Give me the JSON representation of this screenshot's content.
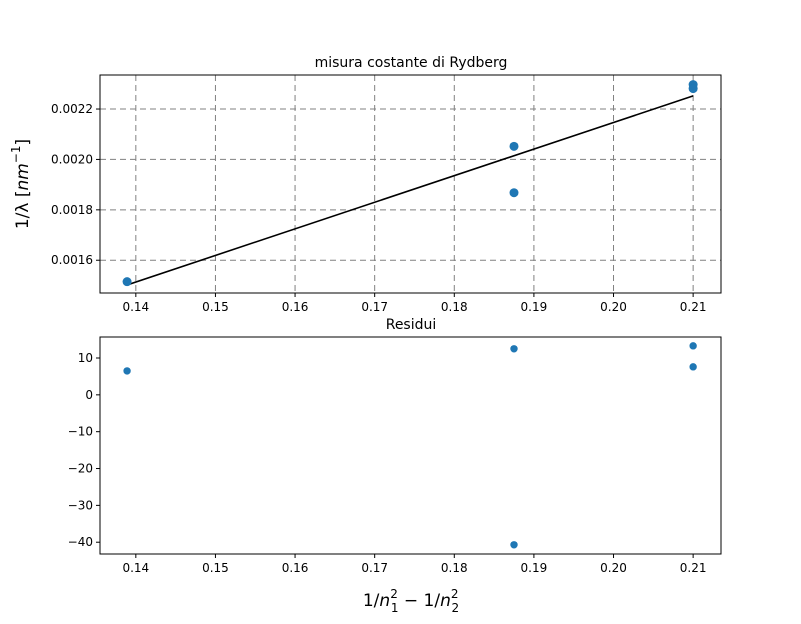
{
  "figure": {
    "background": "#ffffff",
    "marker_color": "#1f77b4",
    "fit_color": "#000000",
    "grid_color": "#808080"
  },
  "chart_data": [
    {
      "type": "scatter",
      "title": "misura costante di Rydberg",
      "xlabel": "",
      "ylabel": "1/λ [nm⁻¹]",
      "ylabel_parts": {
        "lead": "1/λ [",
        "base": "nm",
        "sup": "−1",
        "trail": "]"
      },
      "xlim": [
        0.1355,
        0.2135
      ],
      "ylim": [
        0.00147,
        0.002335
      ],
      "xticks": [
        0.14,
        0.15,
        0.16,
        0.17,
        0.18,
        0.19,
        0.2,
        0.21
      ],
      "xtick_labels": [
        "0.14",
        "0.15",
        "0.16",
        "0.17",
        "0.18",
        "0.19",
        "0.20",
        "0.21"
      ],
      "yticks": [
        0.0016,
        0.0018,
        0.002,
        0.0022
      ],
      "ytick_labels": [
        "0.0016",
        "0.0018",
        "0.0020",
        "0.0022"
      ],
      "grid": true,
      "grid_style": "dashed",
      "series": [
        {
          "kind": "scatter",
          "color": "#1f77b4",
          "x": [
            0.1389,
            0.1875,
            0.1875,
            0.21,
            0.21
          ],
          "y": [
            0.001515,
            0.002052,
            0.001868,
            0.002297,
            0.002281
          ]
        },
        {
          "kind": "line",
          "color": "#000000",
          "x": [
            0.1389,
            0.21
          ],
          "y": [
            0.001502,
            0.002252
          ]
        }
      ]
    },
    {
      "type": "scatter",
      "title": "Residui",
      "xlabel": "1/n₁² − 1/n₂²",
      "xlabel_parts": {
        "a": "1/",
        "n1": "n",
        "n1_sub": "1",
        "n1_sup": "2",
        "mid": " − 1/",
        "n2": "n",
        "n2_sub": "2",
        "n2_sup": "2"
      },
      "ylabel": "",
      "xlim": [
        0.1355,
        0.2135
      ],
      "ylim": [
        -43.2,
        15.7
      ],
      "xticks": [
        0.14,
        0.15,
        0.16,
        0.17,
        0.18,
        0.19,
        0.2,
        0.21
      ],
      "xtick_labels": [
        "0.14",
        "0.15",
        "0.16",
        "0.17",
        "0.18",
        "0.19",
        "0.20",
        "0.21"
      ],
      "yticks": [
        10,
        0,
        -10,
        -20,
        -30,
        -40
      ],
      "ytick_labels": [
        "10",
        "0",
        "−10",
        "−20",
        "−30",
        "−40"
      ],
      "grid": false,
      "series": [
        {
          "kind": "scatter",
          "color": "#1f77b4",
          "x": [
            0.1389,
            0.1875,
            0.1875,
            0.21,
            0.21
          ],
          "y": [
            6.5,
            12.5,
            -40.7,
            13.3,
            7.6
          ]
        }
      ]
    }
  ]
}
